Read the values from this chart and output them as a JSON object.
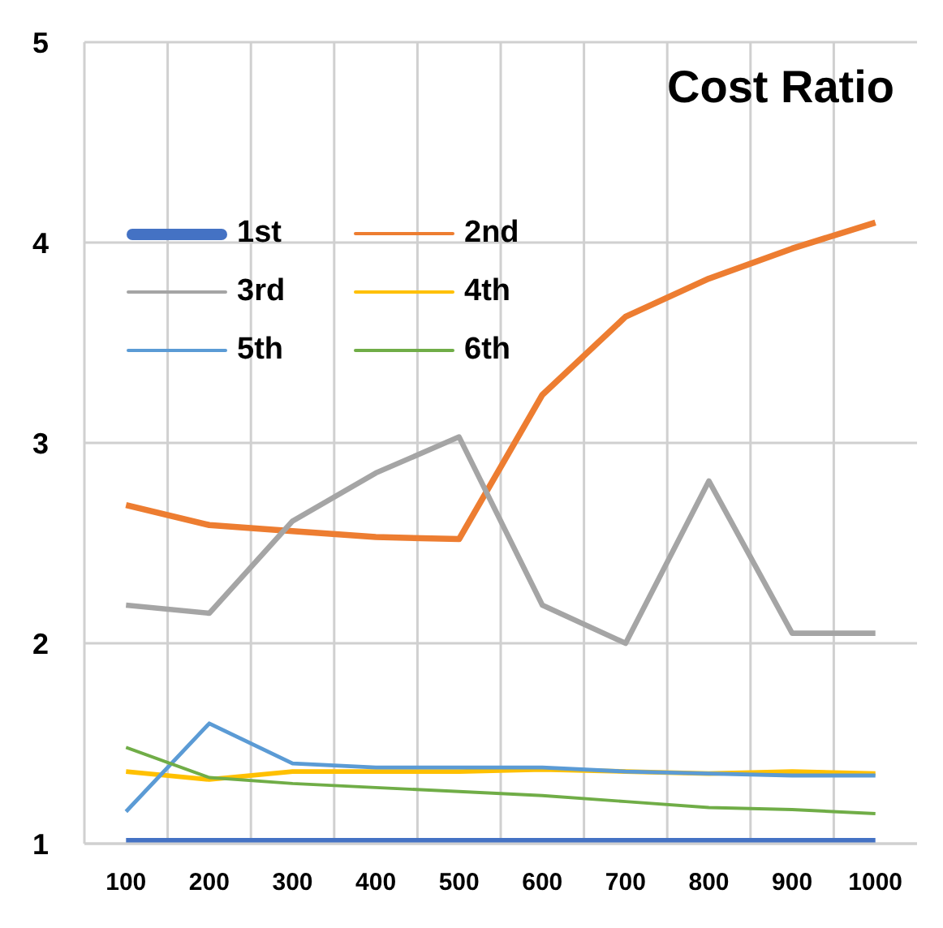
{
  "chart_data": {
    "type": "line",
    "title": "Cost Ratio",
    "categories": [
      "100",
      "200",
      "300",
      "400",
      "500",
      "600",
      "700",
      "800",
      "900",
      "1000"
    ],
    "series": [
      {
        "name": "1st",
        "color": "#4472c4",
        "values": [
          1,
          1,
          1,
          1,
          1,
          1,
          1,
          1,
          1,
          1
        ]
      },
      {
        "name": "2nd",
        "color": "#ed7d31",
        "values": [
          2.69,
          2.59,
          2.56,
          2.53,
          2.52,
          3.24,
          3.63,
          3.82,
          3.97,
          4.1
        ]
      },
      {
        "name": "3rd",
        "color": "#a5a5a5",
        "values": [
          2.19,
          2.15,
          2.61,
          2.85,
          3.03,
          2.19,
          2.0,
          2.81,
          2.05,
          2.05
        ]
      },
      {
        "name": "4th",
        "color": "#ffc000",
        "values": [
          1.36,
          1.32,
          1.36,
          1.36,
          1.36,
          1.37,
          1.36,
          1.35,
          1.36,
          1.35
        ]
      },
      {
        "name": "5th",
        "color": "#5b9bd5",
        "values": [
          1.16,
          1.6,
          1.4,
          1.38,
          1.38,
          1.38,
          1.36,
          1.35,
          1.34,
          1.34
        ]
      },
      {
        "name": "6th",
        "color": "#70ad47",
        "values": [
          1.48,
          1.33,
          1.3,
          1.28,
          1.26,
          1.24,
          1.21,
          1.18,
          1.17,
          1.15
        ]
      }
    ],
    "ylim": [
      1,
      5
    ],
    "yticks": [
      1,
      2,
      3,
      4,
      5
    ],
    "grid": true,
    "legend": "top left",
    "marker": "none",
    "line_style": "solid"
  }
}
